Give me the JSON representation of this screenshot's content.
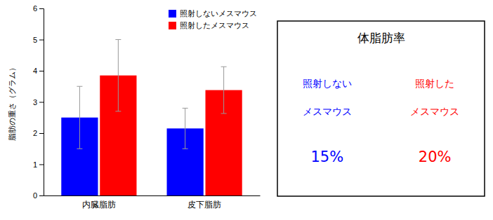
{
  "chart_data": {
    "type": "bar",
    "categories": [
      "内臓脂肪",
      "皮下脂肪"
    ],
    "ylabel": "脂肪の重さ（グラム）",
    "ylim": [
      0,
      6
    ],
    "yticks": [
      0,
      1,
      2,
      3,
      4,
      5,
      6
    ],
    "grid": false,
    "legend": "upper right",
    "error_color": "#999999",
    "series": [
      {
        "name": "照射しないメスマウス",
        "color": "#0000FF",
        "values": [
          2.5,
          2.15
        ],
        "errors": [
          1.0,
          0.65
        ]
      },
      {
        "name": "照射したメスマウス",
        "color": "#FF0000",
        "values": [
          3.85,
          3.38
        ],
        "errors": [
          1.15,
          0.75
        ]
      }
    ],
    "table": {
      "title": "体脂肪率",
      "columns": [
        {
          "lines": [
            "照射しない",
            "メスマウス"
          ],
          "value": "15%"
        },
        {
          "lines": [
            "照射した",
            "メスマウス"
          ],
          "value": "20%"
        }
      ]
    }
  }
}
